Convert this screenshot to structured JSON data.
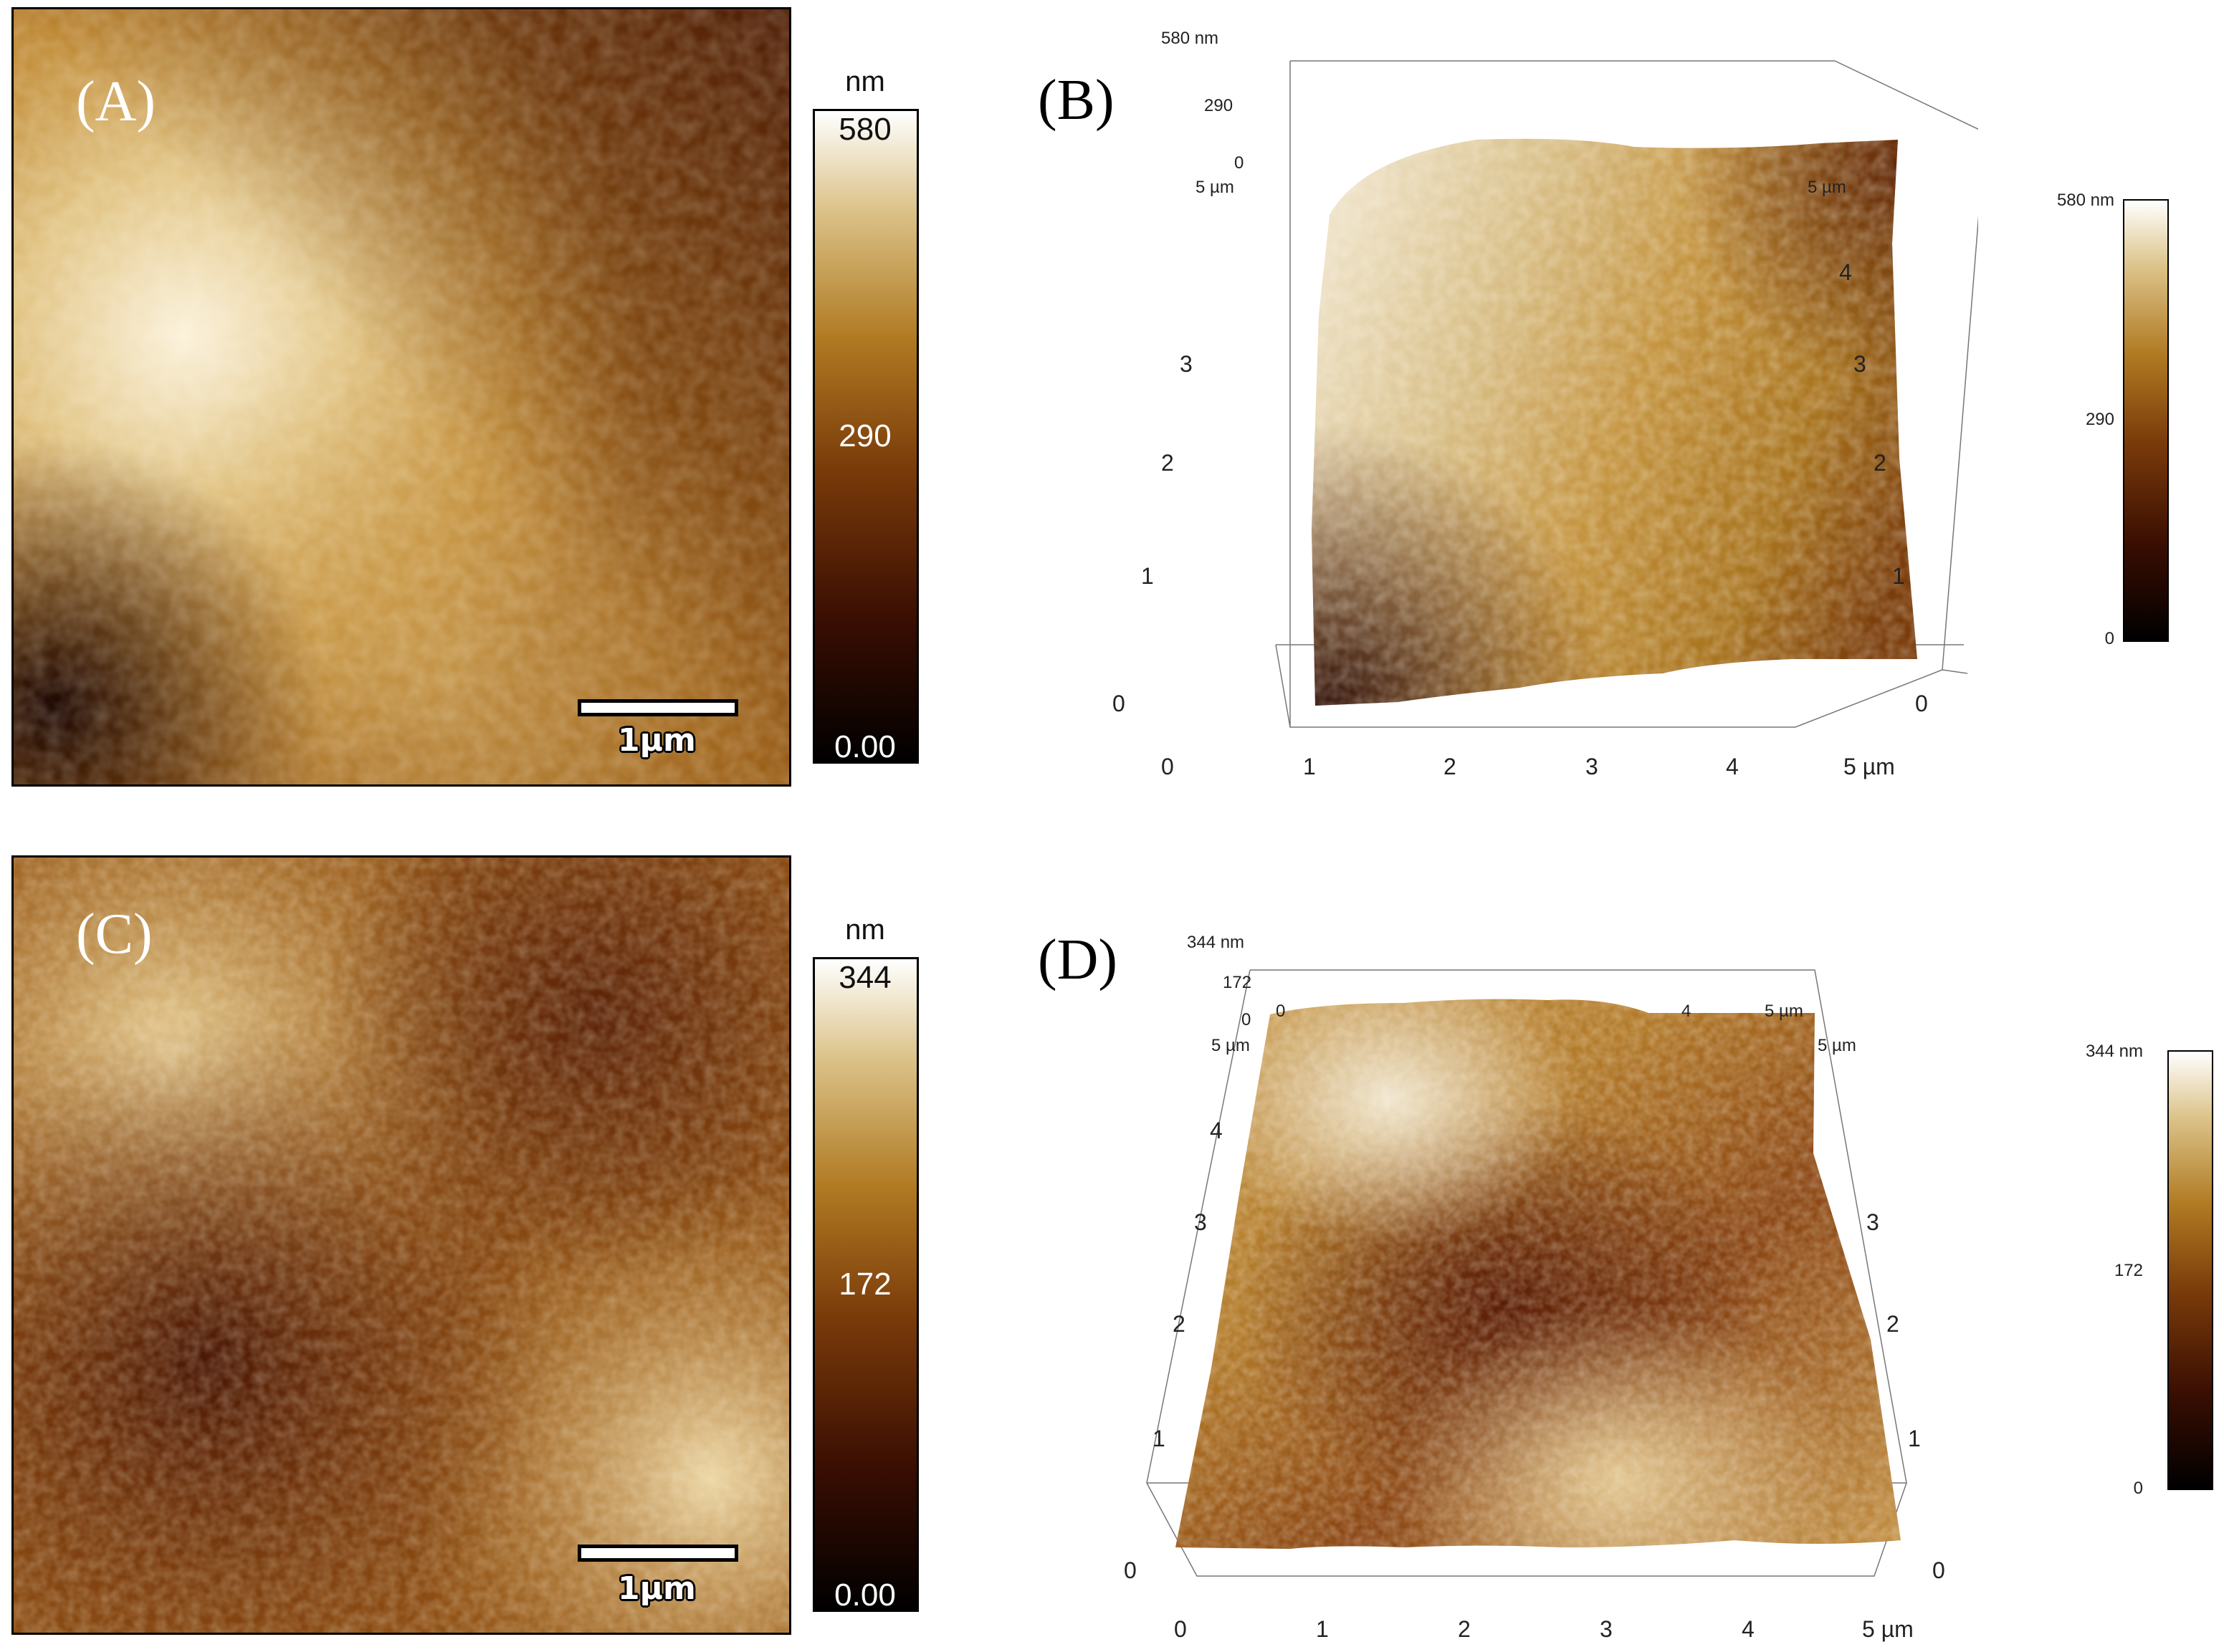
{
  "panels": {
    "a": {
      "letter": "(A)",
      "scale_bar": "1µm",
      "colorbar": {
        "unit": "nm",
        "max": "580",
        "mid": "290",
        "min": "0.00"
      }
    },
    "b": {
      "letter": "(B)",
      "z_top": "580 nm",
      "z_mid": "290",
      "z_zero": "0",
      "x_ticks": [
        "0",
        "1",
        "2",
        "3",
        "4",
        "5 µm"
      ],
      "y_ticks_left": [
        "1",
        "2",
        "3"
      ],
      "y_ticks_right": [
        "1",
        "2",
        "3",
        "4",
        "5 µm"
      ],
      "corner_left": "0",
      "corner_right": "0",
      "back_left": "5 µm",
      "colorbar": {
        "max": "580 nm",
        "mid": "290",
        "min": "0"
      }
    },
    "c": {
      "letter": "(C)",
      "scale_bar": "1µm",
      "colorbar": {
        "unit": "nm",
        "max": "344",
        "mid": "172",
        "min": "0.00"
      }
    },
    "d": {
      "letter": "(D)",
      "z_top": "344 nm",
      "z_mid": "172",
      "z_zero": "0",
      "x_ticks": [
        "0",
        "1",
        "2",
        "3",
        "4",
        "5 µm"
      ],
      "y_ticks_left": [
        "1",
        "2",
        "3",
        "4"
      ],
      "y_ticks_right": [
        "1",
        "2",
        "3",
        "5 µm"
      ],
      "back_ticks": [
        "0",
        "4",
        "5 µm"
      ],
      "corner_left": "0",
      "corner_right": "0",
      "back_left": "5 µm",
      "colorbar": {
        "max": "344 nm",
        "mid": "172",
        "min": "0"
      }
    }
  },
  "colors": {
    "afm_dark": "#1a0802",
    "afm_mid": "#6e3208",
    "afm_gold": "#b98229",
    "afm_light": "#f2e5c9"
  }
}
